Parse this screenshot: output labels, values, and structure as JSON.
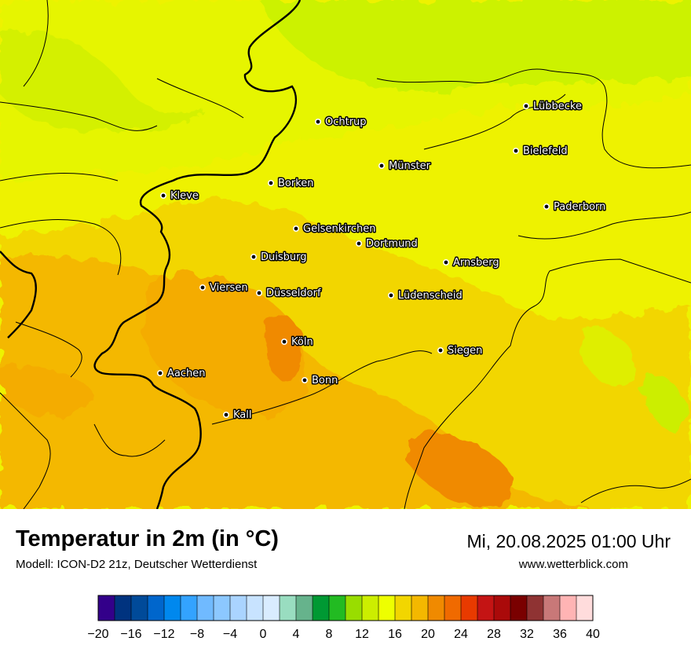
{
  "title": "Temperatur in 2m (in °C)",
  "subtitle": "Modell: ICON-D2 21z, Deutscher Wetterdienst",
  "datetime": "Mi, 20.08.2025 01:00 Uhr",
  "website": "www.wetterblick.com",
  "cities": [
    {
      "name": "Lübbecke"
    },
    {
      "name": "Ochtrup"
    },
    {
      "name": "Bielefeld"
    },
    {
      "name": "Münster"
    },
    {
      "name": "Kleve"
    },
    {
      "name": "Borken"
    },
    {
      "name": "Paderborn"
    },
    {
      "name": "Gelsenkirchen"
    },
    {
      "name": "Dortmund"
    },
    {
      "name": "Duisburg"
    },
    {
      "name": "Arnsberg"
    },
    {
      "name": "Viersen"
    },
    {
      "name": "Düsseldorf"
    },
    {
      "name": "Lüdenscheid"
    },
    {
      "name": "Köln"
    },
    {
      "name": "Siegen"
    },
    {
      "name": "Aachen"
    },
    {
      "name": "Bonn"
    },
    {
      "name": "Kall"
    }
  ],
  "legend": {
    "unit": "°C",
    "ticks": [
      "−20",
      "−16",
      "−12",
      "−8",
      "−4",
      "0",
      "4",
      "8",
      "12",
      "16",
      "20",
      "24",
      "28",
      "32",
      "36",
      "40"
    ],
    "colors": [
      "#33008a",
      "#00337f",
      "#004a99",
      "#0066cc",
      "#0088ee",
      "#33a3ff",
      "#70baff",
      "#8cc8ff",
      "#aad4ff",
      "#c8e3ff",
      "#d9ecff",
      "#99ddc0",
      "#66b38c",
      "#009933",
      "#22bb22",
      "#99dd00",
      "#ccee00",
      "#eeff00",
      "#f2d600",
      "#f4b800",
      "#f08a00",
      "#f06a00",
      "#e83a00",
      "#c41414",
      "#aa0a0a",
      "#7a0000",
      "#8f3333",
      "#c87878",
      "#ffb4b4",
      "#ffdcdc"
    ]
  }
}
